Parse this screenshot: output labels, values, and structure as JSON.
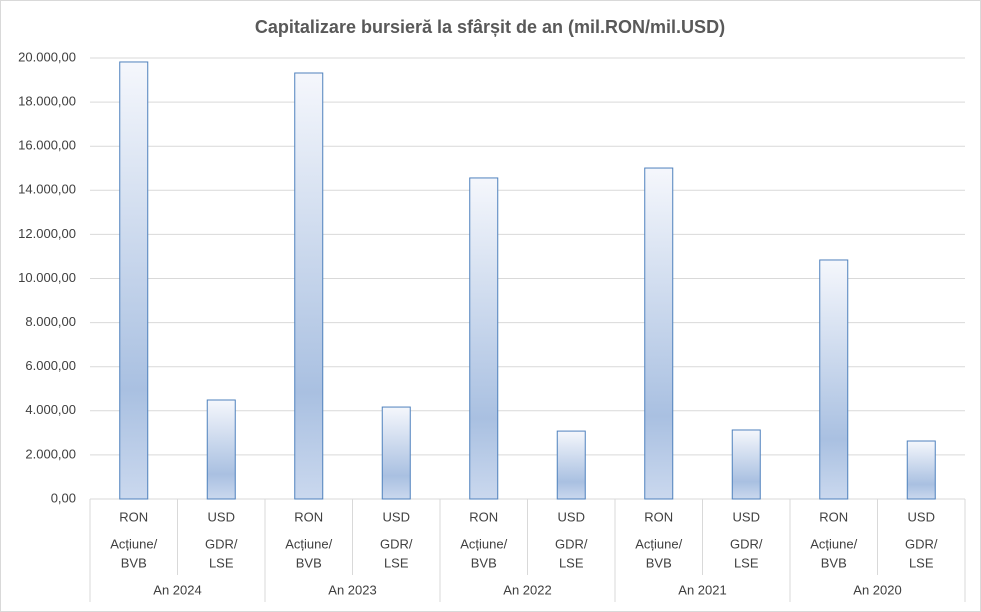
{
  "chart_data": {
    "type": "bar",
    "title": "Capitalizare bursieră la sfârșit de an (mil.RON/mil.USD)",
    "categories": [
      "RON",
      "USD",
      "RON",
      "USD",
      "RON",
      "USD",
      "RON",
      "USD",
      "RON",
      "USD"
    ],
    "subcategories": [
      [
        "Acțiune/",
        "BVB"
      ],
      [
        "GDR/",
        "LSE"
      ],
      [
        "Acțiune/",
        "BVB"
      ],
      [
        "GDR/",
        "LSE"
      ],
      [
        "Acțiune/",
        "BVB"
      ],
      [
        "GDR/",
        "LSE"
      ],
      [
        "Acțiune/",
        "BVB"
      ],
      [
        "GDR/",
        "LSE"
      ],
      [
        "Acțiune/",
        "BVB"
      ],
      [
        "GDR/",
        "LSE"
      ]
    ],
    "groups": [
      "An 2024",
      "An 2023",
      "An 2022",
      "An 2021",
      "An 2020"
    ],
    "values": [
      19820,
      4490,
      19320,
      4170,
      14560,
      3080,
      15010,
      3130,
      10840,
      2630
    ],
    "color": "#4f81bd",
    "ylim": [
      0,
      20000
    ],
    "yticks": [
      {
        "value": 0,
        "label": "0,00"
      },
      {
        "value": 2000,
        "label": "2.000,00"
      },
      {
        "value": 4000,
        "label": "4.000,00"
      },
      {
        "value": 6000,
        "label": "6.000,00"
      },
      {
        "value": 8000,
        "label": "8.000,00"
      },
      {
        "value": 10000,
        "label": "10.000,00"
      },
      {
        "value": 12000,
        "label": "12.000,00"
      },
      {
        "value": 14000,
        "label": "14.000,00"
      },
      {
        "value": 16000,
        "label": "16.000,00"
      },
      {
        "value": 18000,
        "label": "18.000,00"
      },
      {
        "value": 20000,
        "label": "20.000,00"
      }
    ],
    "grid": true
  }
}
